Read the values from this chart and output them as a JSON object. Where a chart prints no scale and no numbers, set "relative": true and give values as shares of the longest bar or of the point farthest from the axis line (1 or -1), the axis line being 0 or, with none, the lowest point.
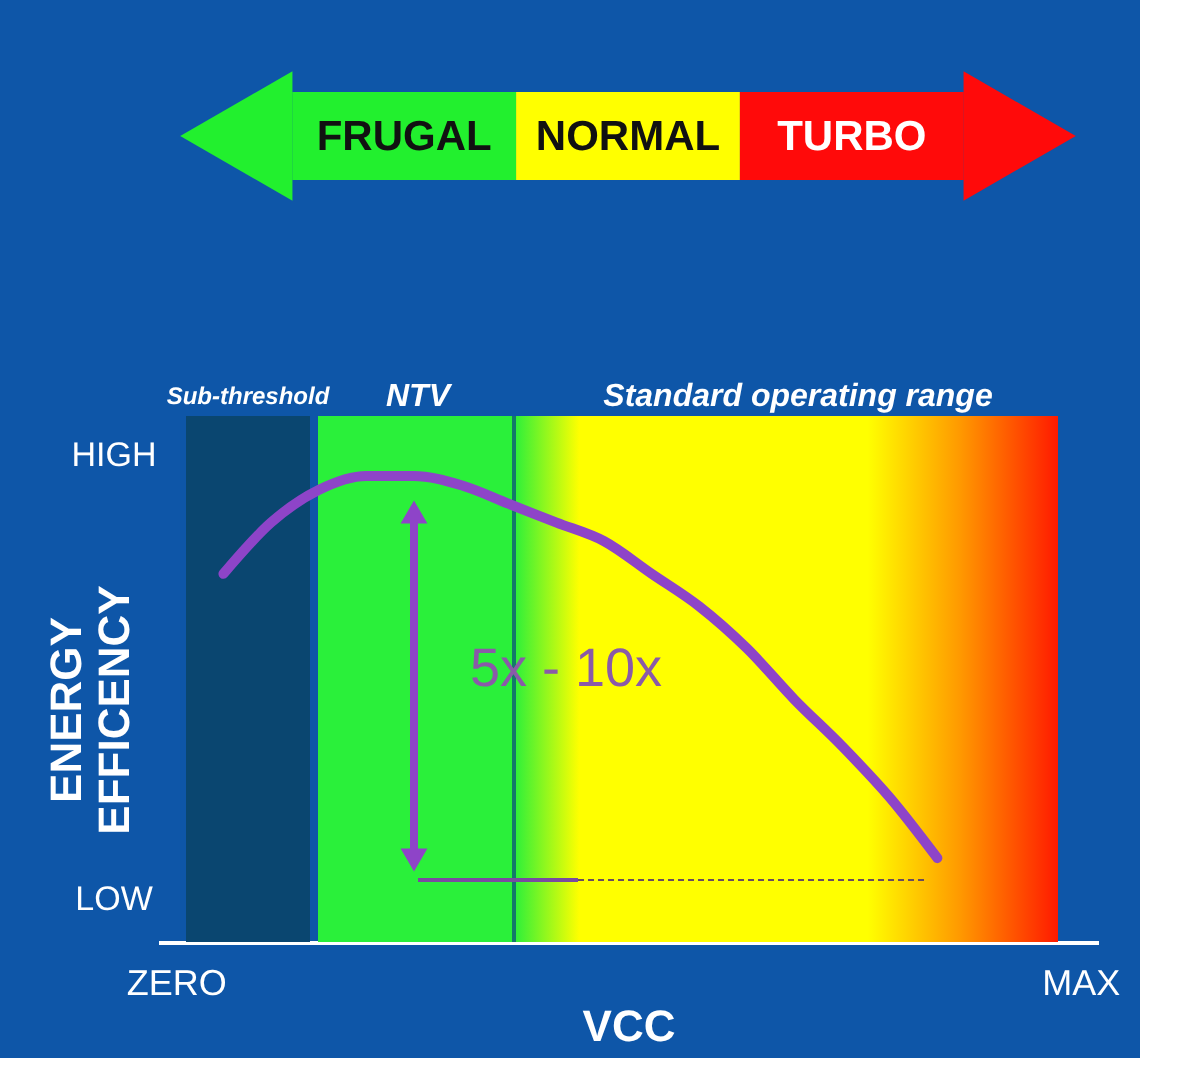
{
  "chart_data": [
    {
      "type": "other",
      "categories": [
        "FRUGAL",
        "NORMAL",
        "TURBO"
      ],
      "colors": [
        "#22f02e",
        "#ffff00",
        "#ff0a0a"
      ]
    },
    {
      "type": "line",
      "relative": true,
      "xlabel": "VCC",
      "ylabel": "ENERGY EFFICENCY",
      "categories": [
        "ZERO",
        null,
        null,
        null,
        null,
        null,
        null,
        null,
        null,
        null,
        null,
        null,
        null,
        null,
        null,
        null,
        null,
        null,
        null,
        "MAX"
      ],
      "series": [
        {
          "color": "#8e44c8",
          "values": [
            null,
            0.79,
            0.9,
            0.97,
            1,
            1,
            0.98,
            0.94,
            0.9,
            0.86,
            0.79,
            0.72,
            0.63,
            0.52,
            0.42,
            0.31,
            0.18,
            null,
            null,
            null
          ]
        }
      ],
      "annotations": [
        "Sub-threshold",
        "NTV",
        "Standard operating range",
        "HIGH",
        "LOW",
        "5x - 10x"
      ],
      "grid": false
    }
  ]
}
